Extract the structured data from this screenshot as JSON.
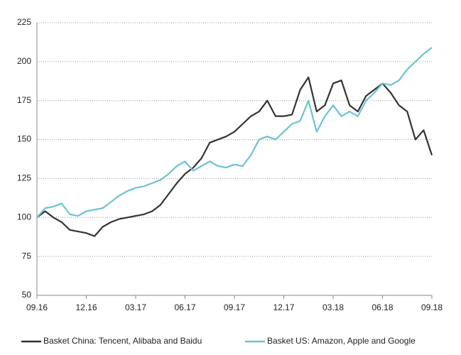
{
  "chart_data": {
    "type": "line",
    "categories": [
      "09.16",
      null,
      null,
      null,
      null,
      null,
      "12.16",
      null,
      null,
      null,
      null,
      null,
      "03.17",
      null,
      null,
      null,
      null,
      null,
      "06.17",
      null,
      null,
      null,
      null,
      null,
      "09.17",
      null,
      null,
      null,
      null,
      null,
      "12.17",
      null,
      null,
      null,
      null,
      null,
      "03.18",
      null,
      null,
      null,
      null,
      null,
      "06.18",
      null,
      null,
      null,
      null,
      null,
      "09.18"
    ],
    "series": [
      {
        "name": "Basket China: Tencent, Alibaba and Baidu",
        "color": "#333333",
        "values": [
          100,
          104,
          100,
          97,
          92,
          91,
          90,
          88,
          94,
          97,
          99,
          100,
          101,
          102,
          104,
          108,
          115,
          122,
          128,
          132,
          138,
          148,
          150,
          152,
          155,
          160,
          165,
          168,
          175,
          165,
          165,
          166,
          182,
          190,
          168,
          172,
          186,
          188,
          172,
          168,
          178,
          182,
          186,
          180,
          172,
          168,
          150,
          156,
          140
        ]
      },
      {
        "name": "Basket US: Amazon, Apple and Google",
        "color": "#6cc3cf",
        "values": [
          100,
          106,
          107,
          109,
          102,
          101,
          104,
          105,
          106,
          110,
          114,
          117,
          119,
          120,
          122,
          124,
          128,
          133,
          136,
          130,
          133,
          136,
          133,
          132,
          134,
          133,
          140,
          150,
          152,
          150,
          155,
          160,
          162,
          175,
          155,
          165,
          172,
          165,
          168,
          165,
          175,
          180,
          186,
          185,
          188,
          195,
          200,
          205,
          209
        ]
      }
    ],
    "ylim": [
      50,
      225
    ],
    "yticks": [
      50,
      75,
      100,
      125,
      150,
      175,
      200,
      225
    ],
    "grid": true,
    "legend": "bottom"
  }
}
